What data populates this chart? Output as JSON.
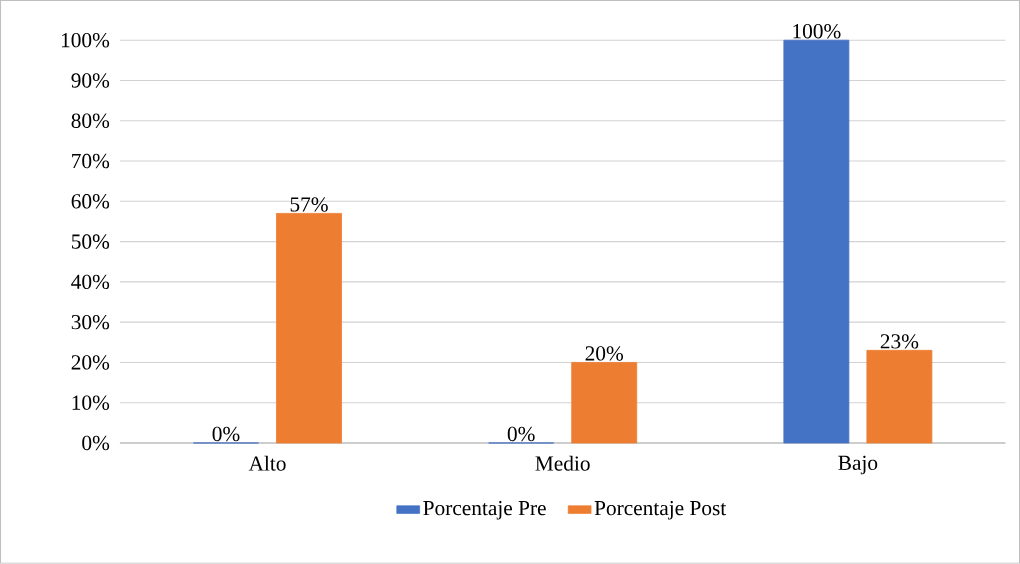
{
  "chart_data": {
    "type": "bar",
    "categories": [
      "Alto",
      "Medio",
      "Bajo"
    ],
    "series": [
      {
        "name": "Porcentaje Pre",
        "color": "#4472c4",
        "values": [
          0,
          0,
          100
        ],
        "value_labels": [
          "0%",
          "0%",
          "100%"
        ]
      },
      {
        "name": "Porcentaje Post",
        "color": "#ed7d31",
        "values": [
          57,
          20,
          23
        ],
        "value_labels": [
          "57%",
          "20%",
          "23%"
        ]
      }
    ],
    "ylim": [
      0,
      100
    ],
    "yticks": [
      {
        "value": 0,
        "label": "0%"
      },
      {
        "value": 10,
        "label": "10%"
      },
      {
        "value": 20,
        "label": "20%"
      },
      {
        "value": 30,
        "label": "30%"
      },
      {
        "value": 40,
        "label": "40%"
      },
      {
        "value": 50,
        "label": "50%"
      },
      {
        "value": 60,
        "label": "60%"
      },
      {
        "value": 70,
        "label": "70%"
      },
      {
        "value": 80,
        "label": "80%"
      },
      {
        "value": 90,
        "label": "90%"
      },
      {
        "value": 100,
        "label": "100%"
      }
    ],
    "grid": "y",
    "legend": "bottom"
  }
}
